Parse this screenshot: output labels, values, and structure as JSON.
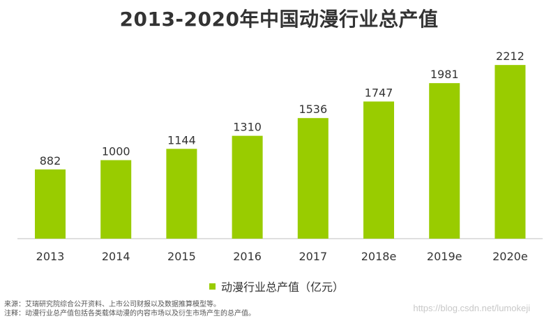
{
  "chart_data": {
    "type": "bar",
    "title": "2013-2020年中国动漫行业总产值",
    "categories": [
      "2013",
      "2014",
      "2015",
      "2016",
      "2017",
      "2018e",
      "2019e",
      "2020e"
    ],
    "series": [
      {
        "name": "动漫行业总产值（亿元）",
        "values": [
          882,
          1000,
          1144,
          1310,
          1536,
          1747,
          1981,
          2212
        ]
      }
    ],
    "ylim": [
      0,
      2500
    ],
    "grid": false,
    "legend_position": "bottom",
    "bar_color": "#99cc00"
  },
  "footnotes": {
    "source": "来源：艾瑞研究院综合公开资料、上市公司财报以及数据推算模型等。",
    "note": "注释：动漫行业总产值包括各类载体动漫的内容市场以及衍生市场产生的总产值。"
  },
  "watermark": "https://blog.csdn.net/lumokeji"
}
